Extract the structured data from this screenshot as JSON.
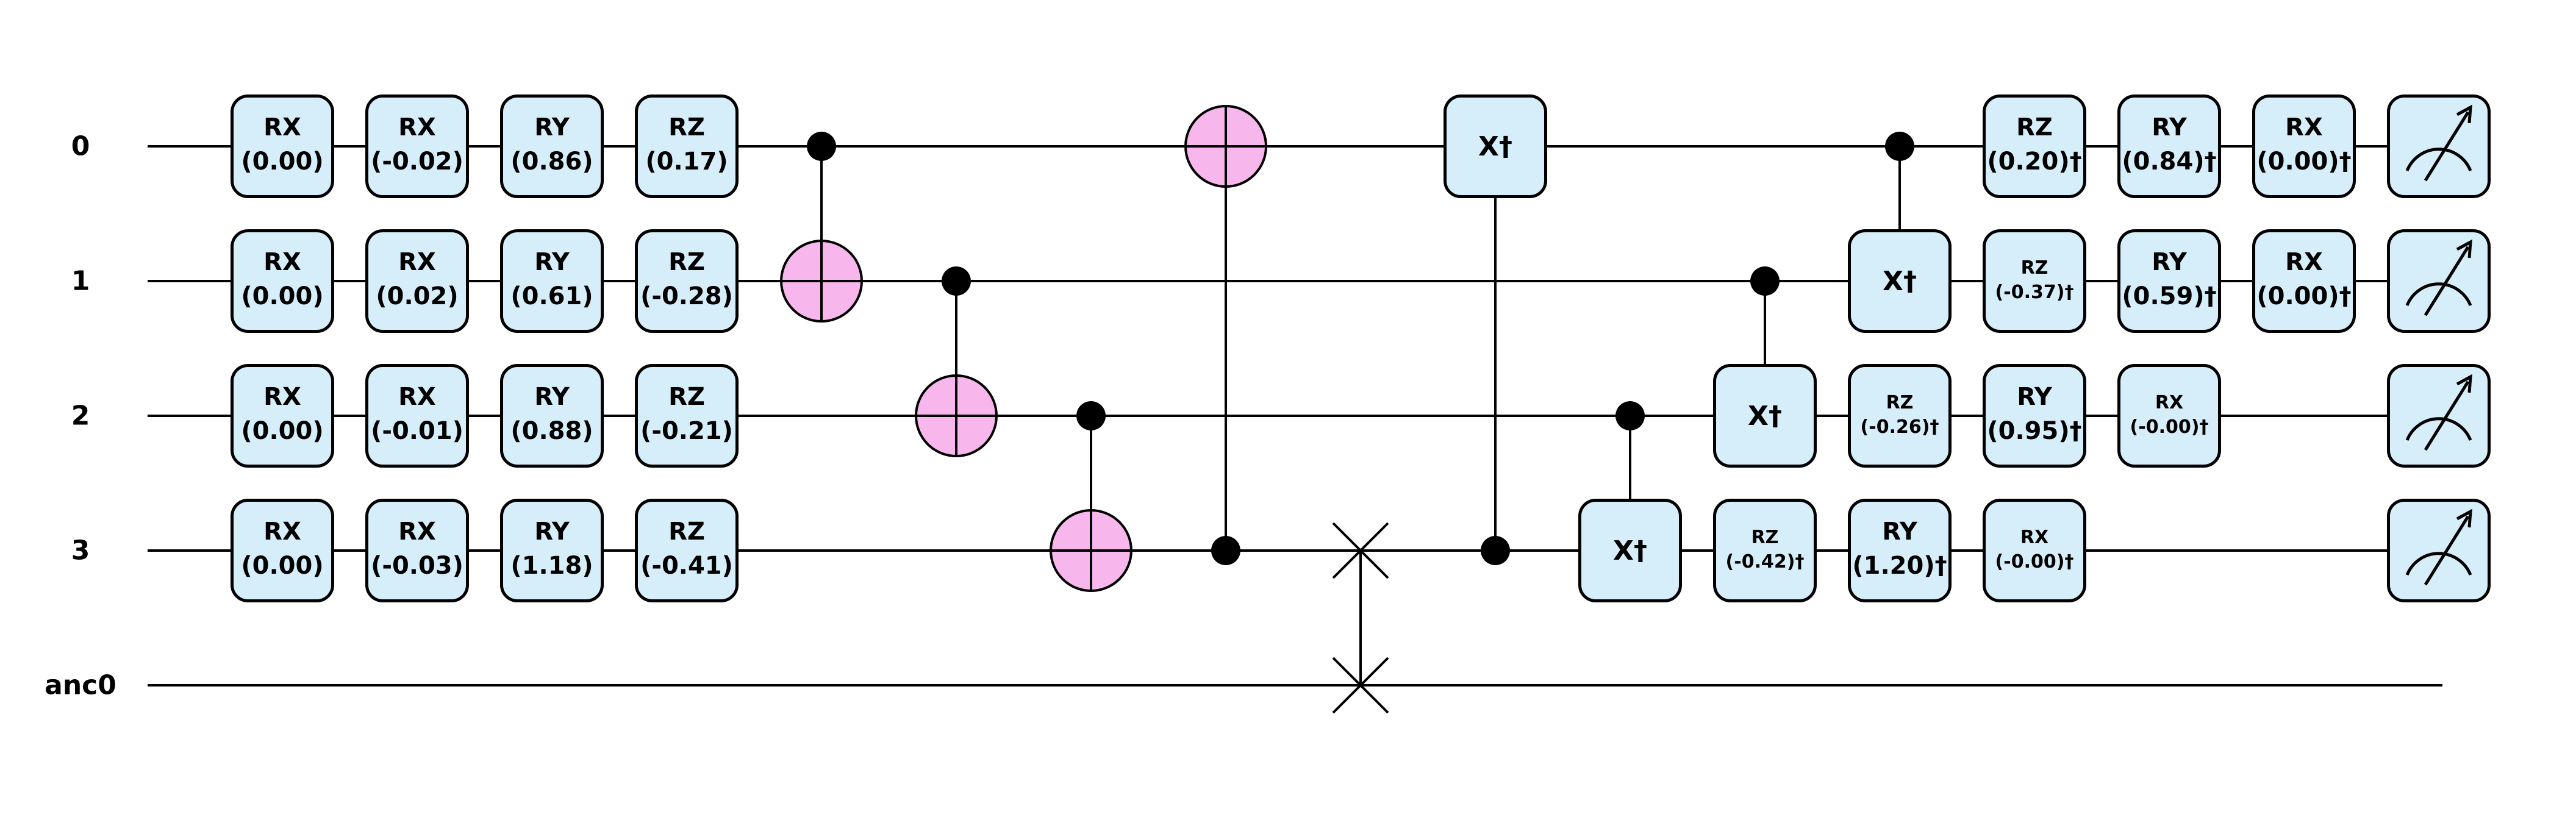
{
  "circuit": {
    "qubits": [
      "0",
      "1",
      "2",
      "3",
      "anc0"
    ],
    "colors": {
      "gate_fill": "#d6eef9",
      "target_fill": "#f7b6ec",
      "line": "#000000"
    },
    "operations": [
      {
        "type": "gate",
        "qubit": 0,
        "col": 0,
        "label": "RX",
        "param": "(0.00)"
      },
      {
        "type": "gate",
        "qubit": 1,
        "col": 0,
        "label": "RX",
        "param": "(0.00)"
      },
      {
        "type": "gate",
        "qubit": 2,
        "col": 0,
        "label": "RX",
        "param": "(0.00)"
      },
      {
        "type": "gate",
        "qubit": 3,
        "col": 0,
        "label": "RX",
        "param": "(0.00)"
      },
      {
        "type": "gate",
        "qubit": 0,
        "col": 1,
        "label": "RX",
        "param": "(-0.02)"
      },
      {
        "type": "gate",
        "qubit": 1,
        "col": 1,
        "label": "RX",
        "param": "(0.02)"
      },
      {
        "type": "gate",
        "qubit": 2,
        "col": 1,
        "label": "RX",
        "param": "(-0.01)"
      },
      {
        "type": "gate",
        "qubit": 3,
        "col": 1,
        "label": "RX",
        "param": "(-0.03)"
      },
      {
        "type": "gate",
        "qubit": 0,
        "col": 2,
        "label": "RY",
        "param": "(0.86)"
      },
      {
        "type": "gate",
        "qubit": 1,
        "col": 2,
        "label": "RY",
        "param": "(0.61)"
      },
      {
        "type": "gate",
        "qubit": 2,
        "col": 2,
        "label": "RY",
        "param": "(0.88)"
      },
      {
        "type": "gate",
        "qubit": 3,
        "col": 2,
        "label": "RY",
        "param": "(1.18)"
      },
      {
        "type": "gate",
        "qubit": 0,
        "col": 3,
        "label": "RZ",
        "param": "(0.17)"
      },
      {
        "type": "gate",
        "qubit": 1,
        "col": 3,
        "label": "RZ",
        "param": "(-0.28)"
      },
      {
        "type": "gate",
        "qubit": 2,
        "col": 3,
        "label": "RZ",
        "param": "(-0.21)"
      },
      {
        "type": "gate",
        "qubit": 3,
        "col": 3,
        "label": "RZ",
        "param": "(-0.41)"
      },
      {
        "type": "cnot",
        "control": 0,
        "target": 1,
        "col": 4
      },
      {
        "type": "cnot",
        "control": 1,
        "target": 2,
        "col": 5
      },
      {
        "type": "cnot",
        "control": 2,
        "target": 3,
        "col": 6
      },
      {
        "type": "cnot",
        "control": 3,
        "target": 0,
        "col": 7
      },
      {
        "type": "swap",
        "qubits": [
          3,
          4
        ],
        "col": 8
      },
      {
        "type": "cgate",
        "control": 3,
        "target": 0,
        "col": 9,
        "label": "X†"
      },
      {
        "type": "cgate",
        "control": 2,
        "target": 3,
        "col": 10,
        "label": "X†"
      },
      {
        "type": "cgate",
        "control": 1,
        "target": 2,
        "col": 11,
        "label": "X†"
      },
      {
        "type": "cgate",
        "control": 0,
        "target": 1,
        "col": 12,
        "label": "X†"
      },
      {
        "type": "gate",
        "qubit": 3,
        "col": 11,
        "label": "RZ",
        "param": "(-0.42)†",
        "small": true
      },
      {
        "type": "gate",
        "qubit": 3,
        "col": 12,
        "label": "RY",
        "param": "(1.20)†"
      },
      {
        "type": "gate",
        "qubit": 3,
        "col": 13,
        "label": "RX",
        "param": "(-0.00)†",
        "small": true
      },
      {
        "type": "gate",
        "qubit": 2,
        "col": 12,
        "label": "RZ",
        "param": "(-0.26)†",
        "small": true
      },
      {
        "type": "gate",
        "qubit": 2,
        "col": 13,
        "label": "RY",
        "param": "(0.95)†"
      },
      {
        "type": "gate",
        "qubit": 2,
        "col": 14,
        "label": "RX",
        "param": "(-0.00)†",
        "small": true
      },
      {
        "type": "gate",
        "qubit": 1,
        "col": 13,
        "label": "RZ",
        "param": "(-0.37)†",
        "small": true
      },
      {
        "type": "gate",
        "qubit": 1,
        "col": 14,
        "label": "RY",
        "param": "(0.59)†"
      },
      {
        "type": "gate",
        "qubit": 1,
        "col": 15,
        "label": "RX",
        "param": "(0.00)†"
      },
      {
        "type": "gate",
        "qubit": 0,
        "col": 13,
        "label": "RZ",
        "param": "(0.20)†"
      },
      {
        "type": "gate",
        "qubit": 0,
        "col": 14,
        "label": "RY",
        "param": "(0.84)†"
      },
      {
        "type": "gate",
        "qubit": 0,
        "col": 15,
        "label": "RX",
        "param": "(0.00)†"
      },
      {
        "type": "measure",
        "qubit": 0,
        "col": 16
      },
      {
        "type": "measure",
        "qubit": 1,
        "col": 16
      },
      {
        "type": "measure",
        "qubit": 2,
        "col": 16
      },
      {
        "type": "measure",
        "qubit": 3,
        "col": 16
      }
    ]
  }
}
